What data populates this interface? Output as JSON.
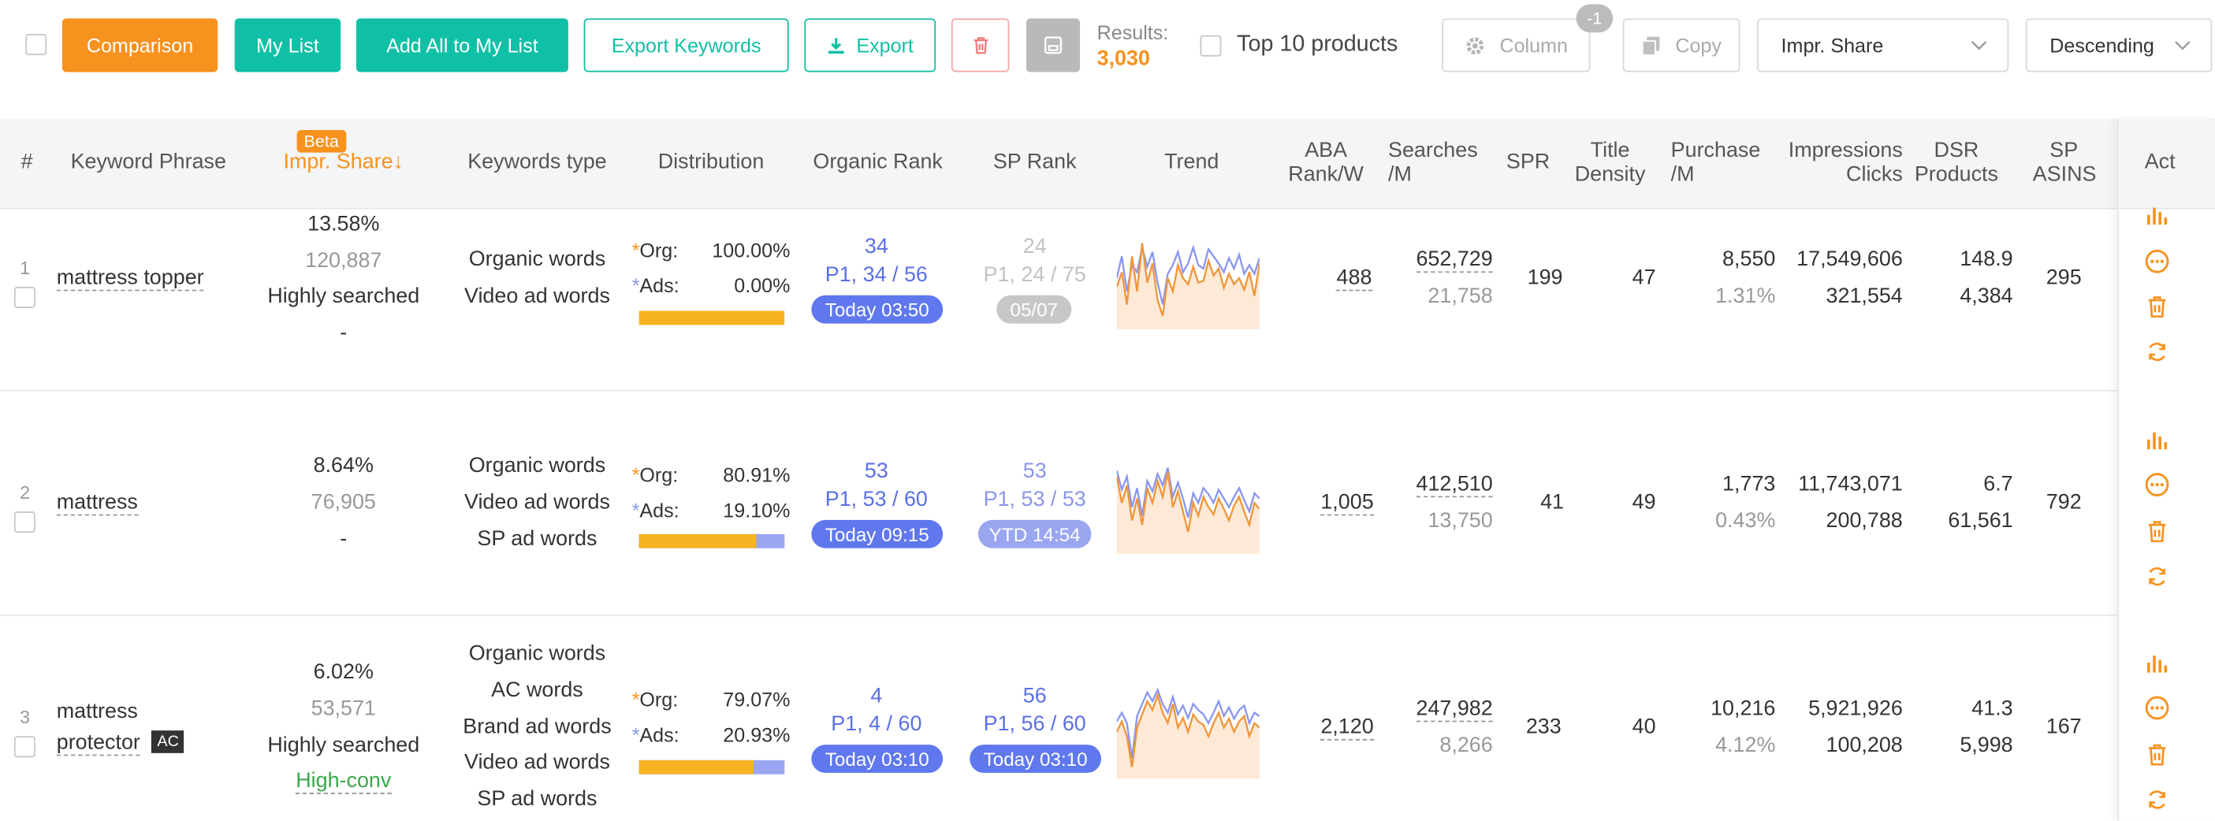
{
  "toolbar": {
    "comparison": "Comparison",
    "my_list": "My List",
    "add_all": "Add All to My List",
    "export_keywords": "Export Keywords",
    "export": "Export",
    "results_label": "Results:",
    "results_value": "3,030",
    "top10": "Top 10 products",
    "column": "Column",
    "column_badge": "-1",
    "copy": "Copy",
    "sort_field": "Impr. Share",
    "sort_order": "Descending"
  },
  "colors": {
    "accent_orange": "#f7921e",
    "teal": "#10c0a6",
    "rank_blue": "#5b6fe6",
    "org_bar": "#f7b321",
    "ads_bar": "#9aa6f2"
  },
  "headers": {
    "index": "#",
    "keyword": "Keyword Phrase",
    "beta": "Beta",
    "impr_share": "Impr. Share",
    "sort_arrow": "↓",
    "kw_type": "Keywords type",
    "distribution": "Distribution",
    "organic_rank": "Organic Rank",
    "sp_rank": "SP Rank",
    "trend": "Trend",
    "aba_1": "ABA",
    "aba_2": "Rank/W",
    "searches_1": "Searches",
    "searches_2": "/M",
    "spr": "SPR",
    "title_density_1": "Title",
    "title_density_2": "Density",
    "purchase_1": "Purchase",
    "purchase_2": "/M",
    "impr_1": "Impressions",
    "impr_2": "Clicks",
    "dsr_1": "DSR",
    "dsr_2": "Products",
    "sp_asins_1": "SP",
    "sp_asins_2": "ASINS",
    "act": "Act"
  },
  "rows": [
    {
      "index": "1",
      "keyword": "mattress topper",
      "impr_share": "13.58%",
      "impr_count": "120,887",
      "impr_tag": "Highly searched",
      "impr_tag2": "-",
      "kw_types": [
        "Organic words",
        "Video ad words"
      ],
      "org_label": "Org:",
      "org_pct": "100.00%",
      "org_frac": 1.0,
      "ads_label": "Ads:",
      "ads_pct": "0.00%",
      "organic_rank": "34",
      "organic_page": "P1, 34 / 56",
      "organic_time": "Today 03:50",
      "sp_rank": "24",
      "sp_page": "P1, 24 / 75",
      "sp_time": "05/07",
      "trend_org": [
        0.45,
        0.62,
        0.25,
        0.8,
        0.4,
        0.95,
        0.5,
        0.72,
        0.3,
        0.12,
        0.55,
        0.4,
        0.7,
        0.55,
        0.48,
        0.68,
        0.5,
        0.52,
        0.75,
        0.58,
        0.66,
        0.44,
        0.6,
        0.48,
        0.55,
        0.42,
        0.62,
        0.35,
        0.72
      ],
      "trend_ads": [
        0.55,
        0.8,
        0.4,
        0.7,
        0.62,
        0.9,
        0.68,
        0.85,
        0.5,
        0.25,
        0.6,
        0.7,
        0.85,
        0.62,
        0.72,
        0.9,
        0.7,
        0.66,
        0.88,
        0.8,
        0.72,
        0.62,
        0.78,
        0.66,
        0.82,
        0.6,
        0.7,
        0.6,
        0.78
      ],
      "aba": "488",
      "searches": "652,729",
      "searches_sub": "21,758",
      "spr": "199",
      "title_density": "47",
      "purchase": "8,550",
      "purchase_pct": "1.31%",
      "impressions": "17,549,606",
      "clicks": "321,554",
      "dsr": "148.9",
      "products": "4,384",
      "sp_asins": "295"
    },
    {
      "index": "2",
      "keyword": "mattress",
      "impr_share": "8.64%",
      "impr_count": "76,905",
      "impr_tag": "-",
      "kw_types": [
        "Organic words",
        "Video ad words",
        "SP ad words"
      ],
      "org_label": "Org:",
      "org_pct": "80.91%",
      "org_frac": 0.8091,
      "ads_label": "Ads:",
      "ads_pct": "19.10%",
      "organic_rank": "53",
      "organic_page": "P1, 53 / 60",
      "organic_time": "Today 09:15",
      "sp_rank": "53",
      "sp_page": "P1, 53 / 53",
      "sp_time": "YTD 14:54",
      "trend_org": [
        0.85,
        0.55,
        0.75,
        0.35,
        0.6,
        0.3,
        0.72,
        0.55,
        0.8,
        0.62,
        0.9,
        0.5,
        0.68,
        0.45,
        0.22,
        0.55,
        0.4,
        0.62,
        0.5,
        0.42,
        0.6,
        0.48,
        0.35,
        0.52,
        0.62,
        0.45,
        0.3,
        0.55,
        0.48
      ],
      "trend_ads": [
        0.92,
        0.7,
        0.85,
        0.5,
        0.72,
        0.4,
        0.8,
        0.68,
        0.88,
        0.75,
        0.95,
        0.62,
        0.78,
        0.6,
        0.38,
        0.66,
        0.55,
        0.72,
        0.65,
        0.55,
        0.7,
        0.6,
        0.5,
        0.62,
        0.72,
        0.58,
        0.45,
        0.66,
        0.6
      ],
      "aba": "1,005",
      "searches": "412,510",
      "searches_sub": "13,750",
      "spr": "41",
      "title_density": "49",
      "purchase": "1,773",
      "purchase_pct": "0.43%",
      "impressions": "11,743,071",
      "clicks": "200,788",
      "dsr": "6.7",
      "products": "61,561",
      "sp_asins": "792"
    },
    {
      "index": "3",
      "keyword_1": "mattress",
      "keyword_2": "protector",
      "ac_badge": "AC",
      "impr_share": "6.02%",
      "impr_count": "53,571",
      "impr_tag": "Highly searched",
      "impr_tag2": "High-conv",
      "kw_types": [
        "Organic words",
        "AC words",
        "Brand ad words",
        "Video ad words",
        "SP ad words"
      ],
      "org_label": "Org:",
      "org_pct": "79.07%",
      "org_frac": 0.7907,
      "ads_label": "Ads:",
      "ads_pct": "20.93%",
      "organic_rank": "4",
      "organic_page": "P1, 4 / 60",
      "organic_time": "Today 03:10",
      "sp_rank": "56",
      "sp_page": "P1, 56 / 60",
      "sp_time": "Today 03:10",
      "trend_org": [
        0.5,
        0.62,
        0.45,
        0.1,
        0.55,
        0.7,
        0.85,
        0.75,
        0.92,
        0.72,
        0.6,
        0.82,
        0.55,
        0.66,
        0.5,
        0.7,
        0.62,
        0.58,
        0.45,
        0.6,
        0.72,
        0.55,
        0.65,
        0.5,
        0.62,
        0.68,
        0.45,
        0.6,
        0.55
      ],
      "trend_ads": [
        0.62,
        0.72,
        0.6,
        0.2,
        0.68,
        0.82,
        0.95,
        0.85,
        0.98,
        0.82,
        0.72,
        0.9,
        0.7,
        0.8,
        0.66,
        0.82,
        0.75,
        0.7,
        0.6,
        0.72,
        0.85,
        0.68,
        0.78,
        0.65,
        0.75,
        0.8,
        0.6,
        0.72,
        0.68
      ],
      "aba": "2,120",
      "searches": "247,982",
      "searches_sub": "8,266",
      "spr": "233",
      "title_density": "40",
      "purchase": "10,216",
      "purchase_pct": "4.12%",
      "impressions": "5,921,926",
      "clicks": "100,208",
      "dsr": "41.3",
      "products": "5,998",
      "sp_asins": "167"
    }
  ]
}
